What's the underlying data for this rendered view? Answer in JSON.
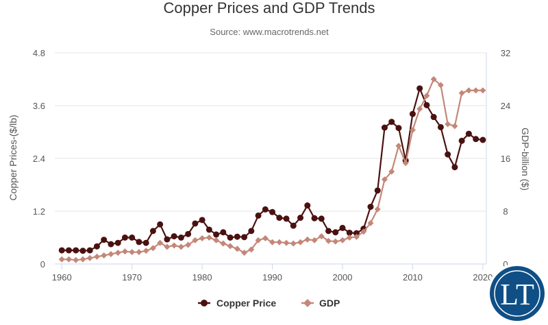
{
  "chart_data": {
    "type": "line",
    "title": "Copper Prices and GDP Trends",
    "subtitle": "Source: www.macrotrends.net",
    "y_left_label": "Copper Prices-($/lb)",
    "y_right_label": "GDP-billion ($)",
    "x_ticks": [
      "1960",
      "1970",
      "1980",
      "1990",
      "2000",
      "2010",
      "2020"
    ],
    "y_left_ticks": [
      "0",
      "1.2",
      "2.4",
      "3.6",
      "4.8"
    ],
    "y_right_ticks": [
      "0",
      "8",
      "16",
      "24",
      "32"
    ],
    "xlim": [
      1959,
      2020.5
    ],
    "y_left_lim": [
      0,
      4.8
    ],
    "y_right_lim": [
      0,
      32
    ],
    "x": [
      1960,
      1961,
      1962,
      1963,
      1964,
      1965,
      1966,
      1967,
      1968,
      1969,
      1970,
      1971,
      1972,
      1973,
      1974,
      1975,
      1976,
      1977,
      1978,
      1979,
      1980,
      1981,
      1982,
      1983,
      1984,
      1985,
      1986,
      1987,
      1988,
      1989,
      1990,
      1991,
      1992,
      1993,
      1994,
      1995,
      1996,
      1997,
      1998,
      1999,
      2000,
      2001,
      2002,
      2003,
      2004,
      2005,
      2006,
      2007,
      2008,
      2009,
      2010,
      2011,
      2012,
      2013,
      2014,
      2015,
      2016,
      2017,
      2018,
      2019,
      2020
    ],
    "series": [
      {
        "name": "Copper Price",
        "axis": "left",
        "color": "#4a1111",
        "marker": "circle",
        "values": [
          0.31,
          0.31,
          0.31,
          0.3,
          0.31,
          0.4,
          0.55,
          0.45,
          0.48,
          0.6,
          0.6,
          0.5,
          0.48,
          0.75,
          0.9,
          0.56,
          0.63,
          0.6,
          0.68,
          0.92,
          1.0,
          0.78,
          0.67,
          0.72,
          0.6,
          0.62,
          0.61,
          0.75,
          1.1,
          1.24,
          1.18,
          1.05,
          1.03,
          0.87,
          1.05,
          1.33,
          1.04,
          1.03,
          0.75,
          0.72,
          0.82,
          0.71,
          0.7,
          0.8,
          1.3,
          1.67,
          3.1,
          3.23,
          3.09,
          2.35,
          3.41,
          3.99,
          3.61,
          3.34,
          3.11,
          2.49,
          2.2,
          2.8,
          2.96,
          2.84,
          2.82
        ]
      },
      {
        "name": "GDP",
        "axis": "right",
        "color": "#c48778",
        "marker": "diamond",
        "values": [
          0.7,
          0.7,
          0.6,
          0.7,
          0.9,
          1.1,
          1.3,
          1.5,
          1.7,
          1.9,
          1.8,
          1.8,
          2.0,
          2.4,
          3.2,
          2.6,
          2.8,
          2.6,
          2.9,
          3.6,
          3.9,
          4.0,
          3.6,
          3.1,
          2.7,
          2.3,
          1.7,
          2.2,
          3.6,
          3.9,
          3.3,
          3.3,
          3.2,
          3.1,
          3.3,
          3.7,
          3.6,
          4.2,
          3.5,
          3.4,
          3.6,
          4.0,
          4.1,
          4.9,
          6.2,
          8.3,
          12.8,
          14.0,
          17.9,
          15.3,
          20.3,
          23.5,
          25.5,
          28.0,
          27.1,
          21.2,
          20.9,
          25.9,
          26.3,
          26.3,
          26.3
        ]
      }
    ],
    "grid": true,
    "legend_position": "bottom-center"
  },
  "legend": {
    "items": [
      {
        "label": "Copper Price",
        "color": "#4a1111"
      },
      {
        "label": "GDP",
        "color": "#c48778"
      }
    ]
  },
  "logo": {
    "text": "LT",
    "color": "#0f4f86"
  }
}
